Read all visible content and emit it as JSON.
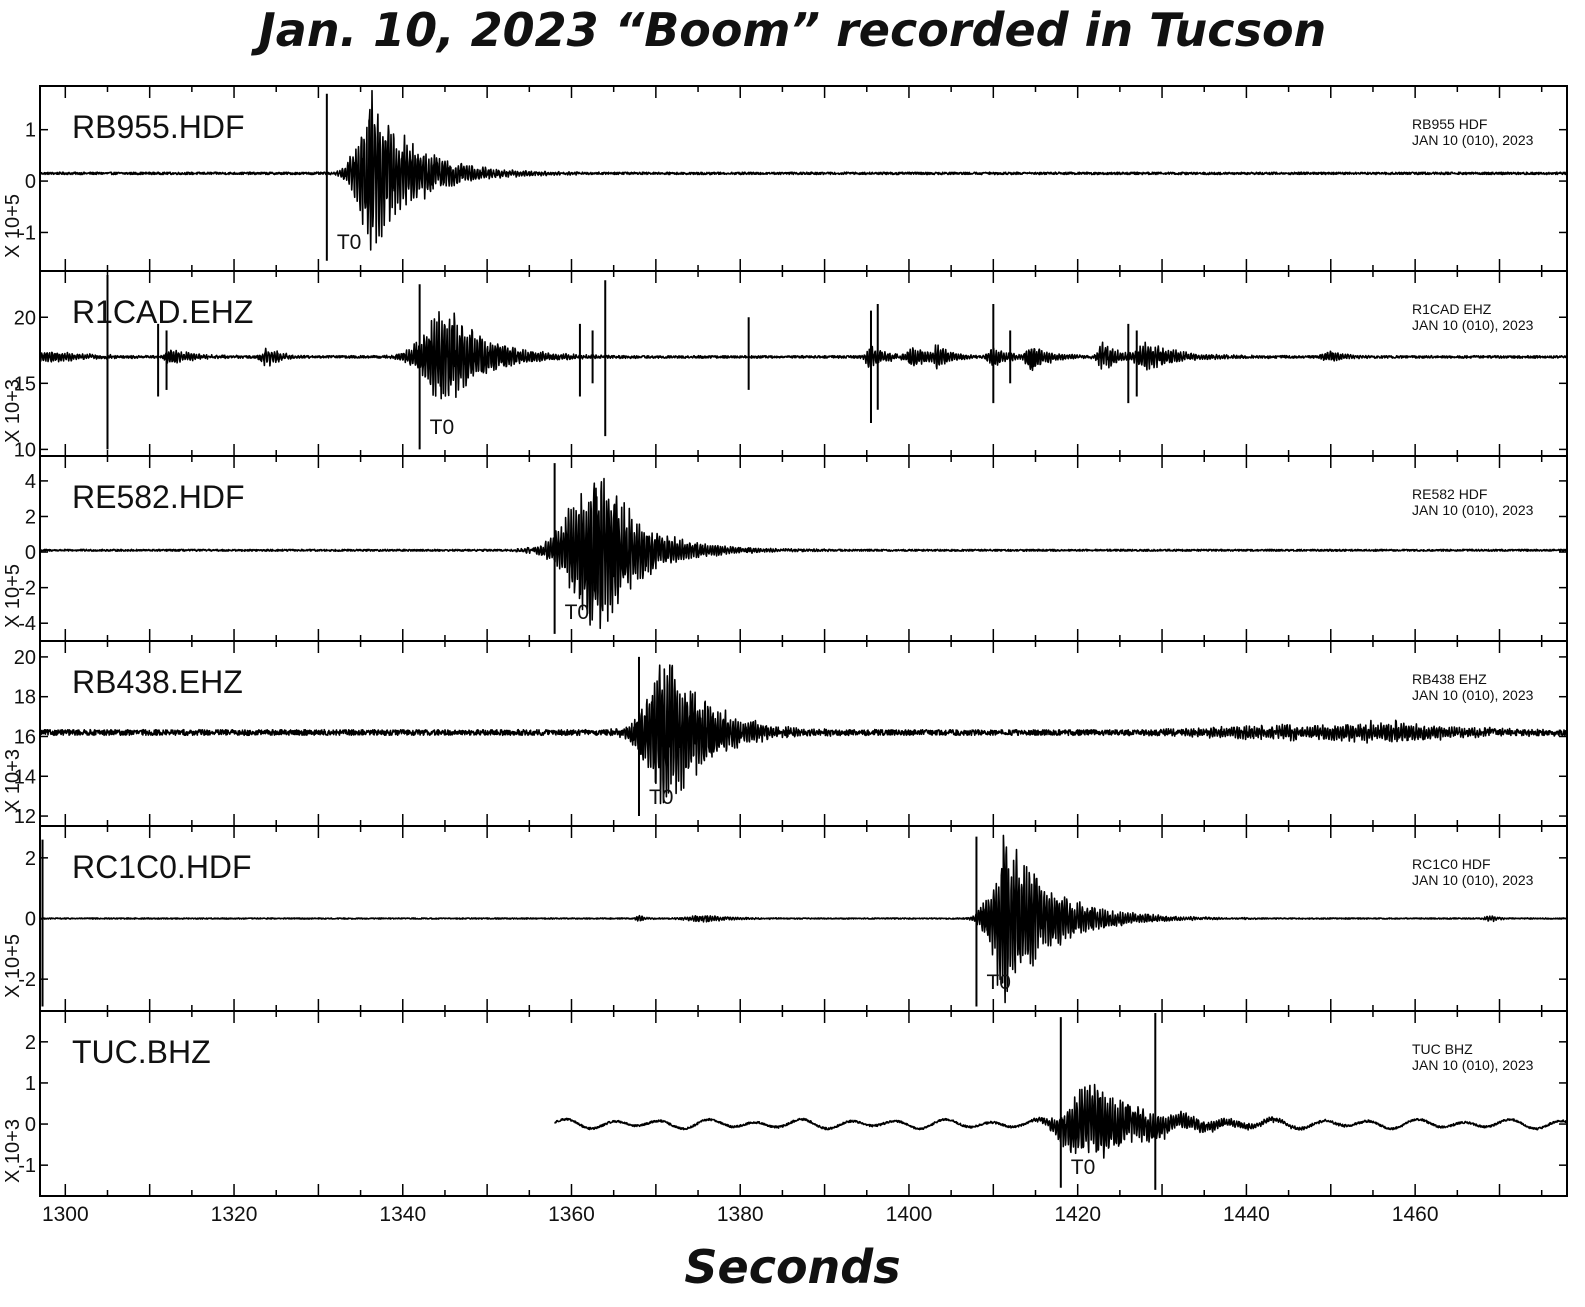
{
  "chart_data": {
    "type": "line",
    "title": "Jan. 10, 2023  “Boom” recorded in Tucson",
    "xlabel": "Seconds",
    "xlim": [
      1297,
      1478
    ],
    "xticks": [
      1300,
      1320,
      1340,
      1360,
      1380,
      1400,
      1420,
      1440,
      1460
    ],
    "grid": false,
    "panels": [
      {
        "station": "RB955.HDF",
        "header_line1": "RB955  HDF",
        "header_line2": "JAN 10 (010), 2023",
        "ylabel": "X 10+5",
        "ylim": [
          -1.75,
          1.85
        ],
        "yticks": [
          -1,
          0,
          1
        ],
        "ytick_labels": [
          "-1",
          "0",
          "1"
        ],
        "baseline": 0.15,
        "noise": 0.022,
        "record_start": 1297,
        "t0": 1331,
        "t0_label": "T0",
        "t0_line": [
          -1.55,
          1.7
        ],
        "bursts": [
          {
            "t": 1336.5,
            "rise": 1.6,
            "decay": 5,
            "amp": 1.65,
            "period": 0.32
          }
        ],
        "spikes": []
      },
      {
        "station": "R1CAD.EHZ",
        "header_line1": "R1CAD  EHZ",
        "header_line2": "JAN 10 (010), 2023",
        "ylabel": "X 10+3",
        "ylim": [
          9.5,
          23.5
        ],
        "yticks": [
          10,
          15,
          20
        ],
        "ytick_labels": [
          "10",
          "15",
          "20"
        ],
        "baseline": 17,
        "noise": 0.09,
        "record_start": 1297,
        "t0": 1342,
        "t0_label": "T0",
        "t0_line": [
          10,
          22.5
        ],
        "bursts": [
          {
            "t": 1297.5,
            "rise": 0.5,
            "decay": 4,
            "amp": 0.6,
            "period": 0.3
          },
          {
            "t": 1312.5,
            "rise": 0.5,
            "decay": 3,
            "amp": 0.6,
            "period": 0.3
          },
          {
            "t": 1324,
            "rise": 0.6,
            "decay": 1.5,
            "amp": 0.8,
            "period": 0.35
          },
          {
            "t": 1345.5,
            "rise": 2.5,
            "decay": 4.5,
            "amp": 4,
            "period": 0.3
          },
          {
            "t": 1395.5,
            "rise": 0.5,
            "decay": 2,
            "amp": 1,
            "period": 0.3
          },
          {
            "t": 1400.5,
            "rise": 0.5,
            "decay": 1.5,
            "amp": 1,
            "period": 0.3
          },
          {
            "t": 1403.5,
            "rise": 0.5,
            "decay": 1.5,
            "amp": 1,
            "period": 0.3
          },
          {
            "t": 1410,
            "rise": 0.5,
            "decay": 2,
            "amp": 1,
            "period": 0.3
          },
          {
            "t": 1414.5,
            "rise": 0.5,
            "decay": 2,
            "amp": 1.1,
            "period": 0.3
          },
          {
            "t": 1423,
            "rise": 0.5,
            "decay": 2,
            "amp": 1.2,
            "period": 0.3
          },
          {
            "t": 1428,
            "rise": 0.8,
            "decay": 4,
            "amp": 1.1,
            "period": 0.3
          },
          {
            "t": 1450,
            "rise": 0.8,
            "decay": 1.5,
            "amp": 0.5,
            "period": 0.3
          }
        ],
        "spikes": [
          {
            "t": 1305,
            "hi": 23.2,
            "lo": 10
          },
          {
            "t": 1311,
            "hi": 19.5,
            "lo": 14
          },
          {
            "t": 1312,
            "hi": 19,
            "lo": 14.5
          },
          {
            "t": 1361,
            "hi": 19.5,
            "lo": 14
          },
          {
            "t": 1362.5,
            "hi": 19,
            "lo": 15
          },
          {
            "t": 1364,
            "hi": 22.8,
            "lo": 11
          },
          {
            "t": 1381,
            "hi": 20,
            "lo": 14.5
          },
          {
            "t": 1395.5,
            "hi": 20.5,
            "lo": 12
          },
          {
            "t": 1396.3,
            "hi": 21,
            "lo": 13
          },
          {
            "t": 1410,
            "hi": 21,
            "lo": 13.5
          },
          {
            "t": 1412,
            "hi": 19,
            "lo": 15
          },
          {
            "t": 1426,
            "hi": 19.5,
            "lo": 13.5
          },
          {
            "t": 1427,
            "hi": 19,
            "lo": 14
          }
        ]
      },
      {
        "station": "RE582.HDF",
        "header_line1": "RE582  HDF",
        "header_line2": "JAN 10 (010), 2023",
        "ylabel": "X 10+5",
        "ylim": [
          -5,
          5.4
        ],
        "yticks": [
          -4,
          -2,
          0,
          2,
          4
        ],
        "ytick_labels": [
          "-4",
          "-2",
          "0",
          "2",
          "4"
        ],
        "baseline": 0.1,
        "noise": 0.05,
        "record_start": 1297,
        "t0": 1358,
        "t0_label": "T0",
        "t0_line": [
          -4.6,
          5
        ],
        "bursts": [
          {
            "t": 1363.3,
            "rise": 3,
            "decay": 5,
            "amp": 5,
            "period": 0.3
          },
          {
            "t": 1355,
            "rise": 1,
            "decay": 2,
            "amp": 0.15,
            "period": 0.4
          }
        ],
        "spikes": []
      },
      {
        "station": "RB438.EHZ",
        "header_line1": "RB438  EHZ",
        "header_line2": "JAN 10 (010), 2023",
        "ylabel": "X 10+3",
        "ylim": [
          11.5,
          20.8
        ],
        "yticks": [
          12,
          14,
          16,
          18,
          20
        ],
        "ytick_labels": [
          "12",
          "14",
          "16",
          "18",
          "20"
        ],
        "baseline": 16.2,
        "noise": 0.14,
        "record_start": 1297,
        "t0": 1368,
        "t0_label": "T0",
        "t0_line": [
          12,
          20
        ],
        "bursts": [
          {
            "t": 1372,
            "rise": 2.5,
            "decay": 4.5,
            "amp": 4.3,
            "period": 0.3
          },
          {
            "t": 1445,
            "rise": 8,
            "decay": 8,
            "amp": 0.35,
            "period": 0.3
          },
          {
            "t": 1458,
            "rise": 6,
            "decay": 8,
            "amp": 0.45,
            "period": 0.3
          }
        ],
        "spikes": []
      },
      {
        "station": "RC1C0.HDF",
        "header_line1": "RC1C0  HDF",
        "header_line2": "JAN 10 (010), 2023",
        "ylabel": "X 10+5",
        "ylim": [
          -3.05,
          3.05
        ],
        "yticks": [
          -2,
          0,
          2
        ],
        "ytick_labels": [
          "-2",
          "0",
          "2"
        ],
        "baseline": 0,
        "noise": 0.018,
        "record_start": 1297,
        "t0": 1408,
        "t0_label": "T0",
        "t0_line": [
          -2.9,
          2.7
        ],
        "bursts": [
          {
            "t": 1411.5,
            "rise": 1.5,
            "decay": 5.5,
            "amp": 2.9,
            "period": 0.3
          },
          {
            "t": 1376,
            "rise": 2,
            "decay": 3,
            "amp": 0.12,
            "period": 0.3
          },
          {
            "t": 1368,
            "rise": 0.3,
            "decay": 0.8,
            "amp": 0.12,
            "period": 0.3
          },
          {
            "t": 1469,
            "rise": 0.5,
            "decay": 1,
            "amp": 0.12,
            "period": 0.3
          }
        ],
        "spikes": [
          {
            "t": 1297.3,
            "hi": 2.6,
            "lo": -2.9
          }
        ]
      },
      {
        "station": "TUC.BHZ",
        "header_line1": "TUC  BHZ",
        "header_line2": "JAN 10 (010), 2023",
        "ylabel": "X 10+3",
        "ylim": [
          -1.75,
          2.75
        ],
        "yticks": [
          -1,
          0,
          1,
          2
        ],
        "ytick_labels": [
          "-1",
          "0",
          "1",
          "2"
        ],
        "baseline": 0,
        "noise": 0.025,
        "swell": 0.08,
        "record_start": 1358,
        "t0": 1418,
        "t0_label": "T0",
        "t0_line": [
          -1.55,
          2.6
        ],
        "bursts": [
          {
            "t": 1421.5,
            "rise": 2.5,
            "decay": 7,
            "amp": 1.05,
            "period": 0.3
          }
        ],
        "spikes": [
          {
            "t": 1429.2,
            "hi": 2.7,
            "lo": -1.6
          }
        ]
      }
    ]
  }
}
